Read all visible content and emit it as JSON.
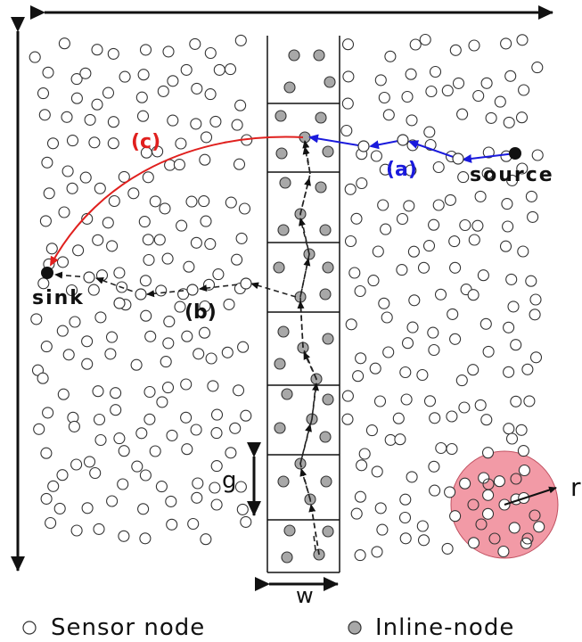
{
  "labels": {
    "source": "source",
    "sink": "sink",
    "a": "(a)",
    "b": "(b)",
    "c": "(c)",
    "g": "g",
    "w": "w",
    "r": "r"
  },
  "legend": {
    "sensor": "Sensor node",
    "inline": "Inline-node"
  },
  "colors": {
    "path_a": "#1a1adc",
    "path_c": "#e0201e",
    "path_b": "#222222",
    "inline_fill": "#a8a8a8",
    "range_fill": "#f29aa6",
    "node_stroke": "#333333"
  }
}
